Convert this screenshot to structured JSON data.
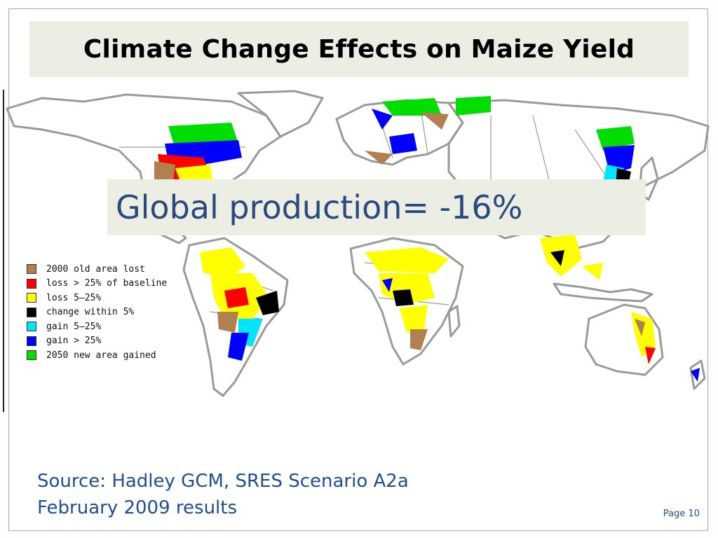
{
  "slide": {
    "title": "Climate Change Effects on Maize Yield",
    "callout": "Global production= -16%",
    "source_line1": "Source: Hadley GCM, SRES Scenario A2a",
    "source_line2": "February 2009 results",
    "page": "Page 10"
  },
  "legend": {
    "items": [
      {
        "label": "2000 old area lost",
        "color": "#b08050"
      },
      {
        "label": "loss > 25% of baseline",
        "color": "#ff0000"
      },
      {
        "label": "loss 5–25%",
        "color": "#ffff00"
      },
      {
        "label": "change within 5%",
        "color": "#000000"
      },
      {
        "label": "gain 5–25%",
        "color": "#00e5ff"
      },
      {
        "label": "gain > 25%",
        "color": "#0000ff"
      },
      {
        "label": "2050 new area gained",
        "color": "#00dd00"
      }
    ]
  },
  "colors": {
    "title_bg": "#eceee4",
    "callout_text": "#2a4a7f",
    "source_text": "#1f4f8f",
    "border_gray": "#9a9a9a"
  }
}
